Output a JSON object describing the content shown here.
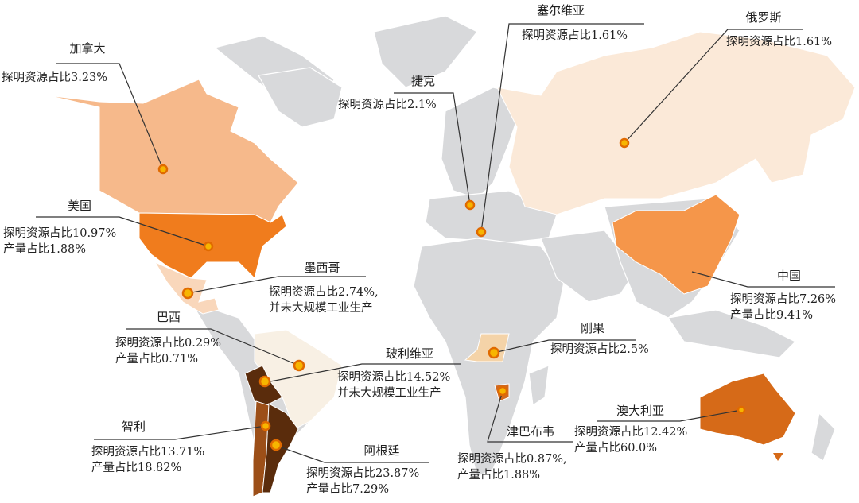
{
  "colors": {
    "land": "#d8d9db",
    "canada": "#f6b98b",
    "usa": "#f07c1d",
    "mexico": "#f9d7bb",
    "brazil": "#f8f0e4",
    "bolivia": "#5a2c0c",
    "argentina": "#5a2c0c",
    "chile": "#9c4f18",
    "russia": "#fbe9d8",
    "china": "#f5964a",
    "congo": "#f4d3a8",
    "zimbabwe": "#d2691e",
    "australia": "#d66a18",
    "marker": "#f7b500"
  },
  "countries": [
    {
      "id": "canada",
      "name": "加拿大",
      "lines": [
        "探明资源占比3.23%"
      ]
    },
    {
      "id": "usa",
      "name": "美国",
      "lines": [
        "探明资源占比10.97%",
        "产量占比1.88%"
      ]
    },
    {
      "id": "mexico",
      "name": "墨西哥",
      "lines": [
        "探明资源占比2.74%,",
        "并未大规模工业生产"
      ]
    },
    {
      "id": "brazil",
      "name": "巴西",
      "lines": [
        "探明资源占比0.29%",
        "产量占比0.71%"
      ]
    },
    {
      "id": "bolivia",
      "name": "玻利维亚",
      "lines": [
        "探明资源占比14.52%",
        "并未大规模工业生产"
      ]
    },
    {
      "id": "chile",
      "name": "智利",
      "lines": [
        "探明资源占比13.71%",
        "产量占比18.82%"
      ]
    },
    {
      "id": "argentina",
      "name": "阿根廷",
      "lines": [
        "探明资源占比23.87%",
        "产量占比7.29%"
      ]
    },
    {
      "id": "czech",
      "name": "捷克",
      "lines": [
        "探明资源占比2.1%"
      ]
    },
    {
      "id": "serbia",
      "name": "塞尔维亚",
      "lines": [
        "探明资源占比1.61%"
      ]
    },
    {
      "id": "russia",
      "name": "俄罗斯",
      "lines": [
        "探明资源占比1.61%"
      ]
    },
    {
      "id": "china",
      "name": "中国",
      "lines": [
        "探明资源占比7.26%",
        "产量占比9.41%"
      ]
    },
    {
      "id": "congo",
      "name": "刚果",
      "lines": [
        "探明资源占比2.5%"
      ]
    },
    {
      "id": "zimbabwe",
      "name": "津巴布韦",
      "lines": [
        "探明资源占比0.87%,",
        "产量占比1.88%"
      ]
    },
    {
      "id": "australia",
      "name": "澳大利亚",
      "lines": [
        "探明资源占比12.42%",
        "产量占比60.0%"
      ]
    }
  ]
}
